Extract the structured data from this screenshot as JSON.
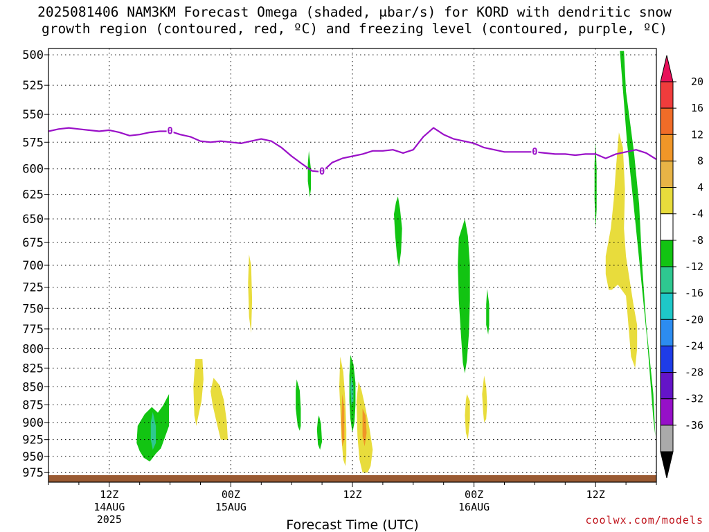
{
  "chart_data": {
    "type": "heatmap",
    "title_line1": "2025081406 NAM3KM Forecast Omega (shaded, μbar/s) for KORD with dendritic snow",
    "title_line2": "growth region (contoured, red, ºC) and freezing level (contoured, purple, ºC)",
    "xlabel": "Forecast Time (UTC)",
    "credit": "coolwx.com/models",
    "x_unit": "hours since 2025-08-14 00Z",
    "xlim": [
      6,
      66
    ],
    "y_unit": "hPa",
    "ylim": [
      990,
      495
    ],
    "y_scale": "log",
    "grid": true,
    "y_ticks": [
      500,
      525,
      550,
      575,
      600,
      625,
      650,
      675,
      700,
      725,
      750,
      775,
      800,
      825,
      850,
      875,
      900,
      925,
      950,
      975
    ],
    "x_ticks": [
      {
        "hour": 12,
        "lines": [
          "12Z",
          "14AUG",
          "2025"
        ]
      },
      {
        "hour": 24,
        "lines": [
          "00Z",
          "15AUG"
        ]
      },
      {
        "hour": 36,
        "lines": [
          "12Z"
        ]
      },
      {
        "hour": 48,
        "lines": [
          "00Z",
          "16AUG"
        ]
      },
      {
        "hour": 60,
        "lines": [
          "12Z"
        ]
      }
    ],
    "colorbar": {
      "labels": [
        "20",
        "16",
        "12",
        "8",
        "4",
        "-4",
        "-8",
        "-12",
        "-16",
        "-20",
        "-24",
        "-28",
        "-32",
        "-36"
      ],
      "colors": [
        "#e8105a",
        "#f03c3c",
        "#f06c28",
        "#f09628",
        "#e8b446",
        "#e8dc3c",
        "#ffffff",
        "#12c412",
        "#2ec890",
        "#1ec8c8",
        "#2c8cf0",
        "#1e3ce8",
        "#6414c8",
        "#9610c8",
        "#aaaaaa",
        "#000000"
      ]
    },
    "freezing_level": {
      "label": "0",
      "color": "#9a10c8",
      "x": [
        6,
        7,
        8,
        9,
        10,
        11,
        12,
        13,
        14,
        15,
        16,
        17,
        18,
        19,
        20,
        21,
        22,
        23,
        24,
        25,
        26,
        27,
        28,
        29,
        30,
        31,
        32,
        33,
        34,
        35,
        36,
        37,
        38,
        39,
        40,
        41,
        42,
        43,
        44,
        45,
        46,
        47,
        48,
        49,
        50,
        51,
        52,
        53,
        54,
        55,
        56,
        57,
        58,
        59,
        60,
        61,
        62,
        63,
        64,
        65,
        66
      ],
      "y": [
        565,
        563,
        562,
        563,
        564,
        565,
        564,
        566,
        569,
        568,
        566,
        565,
        565,
        568,
        570,
        574,
        575,
        574,
        575,
        576,
        574,
        572,
        574,
        580,
        588,
        595,
        602,
        603,
        594,
        590,
        588,
        586,
        583,
        583,
        582,
        585,
        582,
        570,
        562,
        568,
        572,
        574,
        576,
        580,
        582,
        584,
        584,
        584,
        584,
        585,
        586,
        586,
        587,
        586,
        586,
        590,
        586,
        584,
        582,
        585,
        591
      ]
    },
    "omega_regions": [
      {
        "level": "-4",
        "color": "#12c412",
        "x": [
          62.4,
          62.8,
          63.0,
          63.8,
          64.3,
          64.6,
          65.0,
          65.7,
          65.9,
          65.7,
          65.1,
          64.4,
          63.7,
          63.1,
          62.8,
          62.4
        ],
        "y": [
          497,
          497,
          530,
          585,
          635,
          700,
          770,
          860,
          920,
          895,
          790,
          705,
          630,
          575,
          540,
          497
        ]
      },
      {
        "level": "-4",
        "color": "#12c412",
        "x": [
          16.8,
          17.3,
          17.6,
          17.9,
          17.9,
          17.1,
          16.6,
          16.3,
          16.0,
          15.4,
          15.0,
          14.7,
          14.8,
          15.5,
          16.2,
          16.8
        ],
        "y": [
          886,
          876,
          868,
          860,
          905,
          938,
          946,
          952,
          958,
          952,
          942,
          930,
          905,
          888,
          878,
          886
        ]
      },
      {
        "level": "-4",
        "color": "#12c412",
        "x": [
          47.1,
          47.4,
          47.6,
          47.6,
          47.5,
          47.3,
          47.1,
          46.9,
          46.7,
          46.5,
          46.4,
          46.5,
          46.8,
          47.1
        ],
        "y": [
          650,
          668,
          700,
          740,
          780,
          815,
          832,
          818,
          780,
          740,
          700,
          670,
          660,
          650
        ]
      },
      {
        "level": "-4",
        "color": "#12c412",
        "x": [
          40.5,
          40.7,
          40.9,
          40.8,
          40.6,
          40.4,
          40.2,
          40.1,
          40.3,
          40.5
        ],
        "y": [
          627,
          640,
          660,
          685,
          702,
          690,
          665,
          645,
          633,
          627
        ]
      },
      {
        "level": "-4",
        "color": "#12c412",
        "x": [
          35.8,
          36.1,
          36.3,
          36.3,
          36.2,
          36.0,
          35.8,
          35.7,
          35.7,
          35.8
        ],
        "y": [
          808,
          820,
          845,
          875,
          900,
          915,
          895,
          870,
          835,
          808
        ]
      },
      {
        "level": "-4",
        "color": "#12c412",
        "x": [
          30.5,
          30.8,
          30.9,
          30.9,
          30.8,
          30.6,
          30.4,
          30.4,
          30.5
        ],
        "y": [
          840,
          855,
          880,
          905,
          912,
          905,
          880,
          855,
          840
        ]
      },
      {
        "level": "-4",
        "color": "#12c412",
        "x": [
          32.7,
          32.9,
          33.0,
          32.8,
          32.6,
          32.5,
          32.6,
          32.7
        ],
        "y": [
          890,
          902,
          928,
          940,
          932,
          910,
          895,
          890
        ]
      },
      {
        "level": "-4",
        "color": "#12c412",
        "x": [
          49.3,
          49.5,
          49.5,
          49.4,
          49.2,
          49.2,
          49.3
        ],
        "y": [
          727,
          745,
          770,
          782,
          770,
          745,
          727
        ]
      },
      {
        "level": "-4",
        "color": "#12c412",
        "x": [
          31.7,
          31.9,
          31.9,
          31.8,
          31.6,
          31.6,
          31.7
        ],
        "y": [
          583,
          600,
          620,
          628,
          612,
          595,
          583
        ]
      },
      {
        "level": "-4",
        "color": "#12c412",
        "x": [
          60.0,
          60.1,
          60.1,
          60.0,
          59.9,
          59.9,
          60.0
        ],
        "y": [
          575,
          600,
          640,
          660,
          630,
          595,
          575
        ]
      },
      {
        "level": "-8",
        "color": "#2ec890",
        "x": [
          16.3,
          16.6,
          16.6,
          16.3,
          16.1,
          16.1,
          16.3
        ],
        "y": [
          885,
          905,
          930,
          940,
          925,
          900,
          885
        ]
      },
      {
        "level": "-8",
        "color": "#2ec890",
        "x": [
          35.9,
          36.1,
          36.1,
          35.9,
          35.8,
          35.9
        ],
        "y": [
          835,
          850,
          870,
          875,
          850,
          835
        ]
      },
      {
        "level": "4",
        "color": "#e8dc3c",
        "x": [
          62.3,
          62.7,
          62.9,
          62.8,
          63.0,
          63.4,
          63.8,
          64.1,
          64.1,
          63.9,
          63.5,
          63.0,
          62.2,
          61.6,
          61.3,
          61.0,
          61.0,
          61.5,
          61.8,
          62.0,
          62.3
        ],
        "y": [
          566,
          580,
          620,
          660,
          690,
          720,
          750,
          770,
          800,
          825,
          810,
          735,
          722,
          728,
          728,
          710,
          690,
          660,
          630,
          600,
          566
        ]
      },
      {
        "level": "4",
        "color": "#e8dc3c",
        "x": [
          20.5,
          21.2,
          21.3,
          21.1,
          20.8,
          20.6,
          20.4,
          20.3,
          20.5
        ],
        "y": [
          813,
          813,
          840,
          870,
          890,
          905,
          890,
          850,
          813
        ]
      },
      {
        "level": "4",
        "color": "#e8dc3c",
        "x": [
          22.3,
          22.9,
          23.3,
          23.6,
          23.7,
          23.0,
          22.6,
          22.2,
          22.0,
          22.3
        ],
        "y": [
          838,
          848,
          868,
          898,
          925,
          925,
          900,
          875,
          856,
          838
        ]
      },
      {
        "level": "4",
        "color": "#e8dc3c",
        "x": [
          34.8,
          35.1,
          35.3,
          35.4,
          35.4,
          35.3,
          35.1,
          34.9,
          34.8,
          34.7,
          34.8
        ],
        "y": [
          810,
          830,
          870,
          910,
          950,
          965,
          955,
          920,
          880,
          850,
          810
        ]
      },
      {
        "level": "4",
        "color": "#e8dc3c",
        "x": [
          36.6,
          36.9,
          37.3,
          37.7,
          38.0,
          37.8,
          37.5,
          37.0,
          36.7,
          36.5,
          36.4,
          36.6
        ],
        "y": [
          843,
          855,
          880,
          910,
          940,
          965,
          975,
          975,
          955,
          920,
          870,
          843
        ]
      },
      {
        "level": "4",
        "color": "#e8dc3c",
        "x": [
          25.8,
          26.0,
          26.1,
          26.0,
          25.8,
          25.7,
          25.8
        ],
        "y": [
          688,
          700,
          740,
          780,
          760,
          720,
          688
        ]
      },
      {
        "level": "4",
        "color": "#e8dc3c",
        "x": [
          49.0,
          49.2,
          49.3,
          49.2,
          49.0,
          48.9,
          48.8,
          49.0
        ],
        "y": [
          835,
          850,
          875,
          895,
          900,
          885,
          860,
          835
        ]
      },
      {
        "level": "4",
        "color": "#e8dc3c",
        "x": [
          47.3,
          47.6,
          47.6,
          47.4,
          47.2,
          47.1,
          47.2,
          47.3
        ],
        "y": [
          860,
          870,
          895,
          925,
          915,
          890,
          868,
          860
        ]
      },
      {
        "level": "8",
        "color": "#f09628",
        "x": [
          35.0,
          35.2,
          35.2,
          35.0,
          34.9,
          35.0
        ],
        "y": [
          860,
          880,
          925,
          935,
          900,
          860
        ]
      },
      {
        "level": "8",
        "color": "#f09628",
        "x": [
          37.0,
          37.3,
          37.4,
          37.2,
          37.0,
          37.0
        ],
        "y": [
          880,
          890,
          915,
          935,
          920,
          880
        ]
      }
    ]
  }
}
